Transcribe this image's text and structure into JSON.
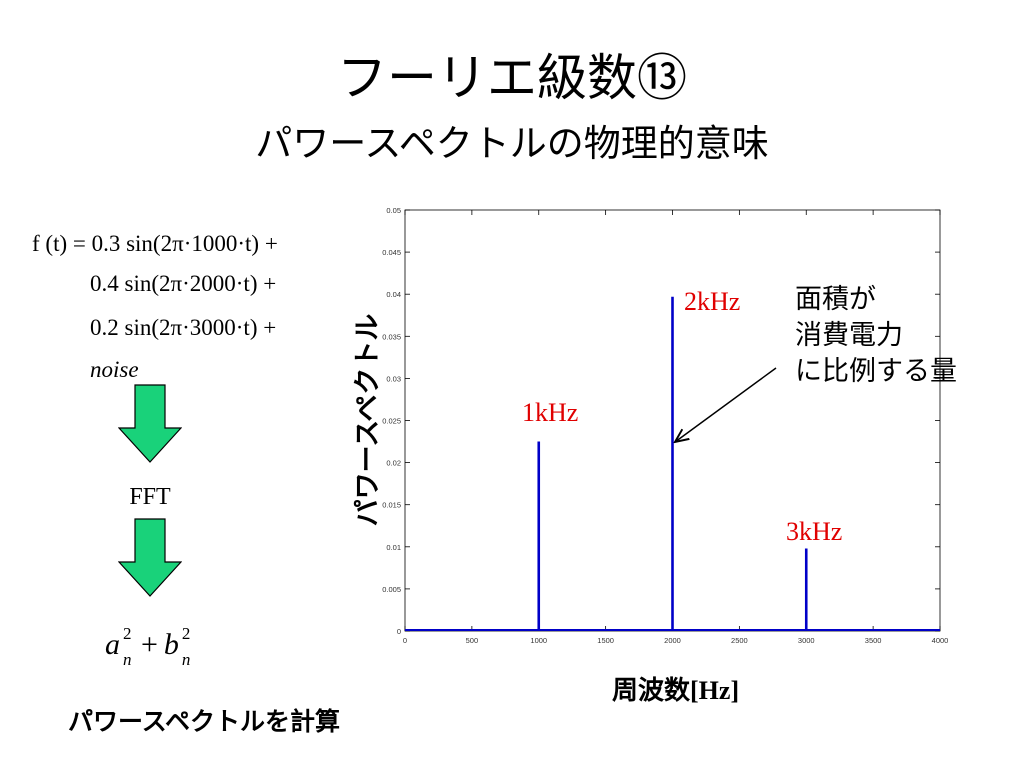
{
  "title": "フーリエ級数⑬",
  "subtitle": "パワースペクトルの物理的意味",
  "equation": {
    "line1": "f (t) = 0.3 sin(2π·1000·t) +",
    "line2": "0.4 sin(2π·2000·t) +",
    "line3": "0.2 sin(2π·3000·t) +",
    "line4": "noise"
  },
  "fft_label": "FFT",
  "formula": {
    "a": "a",
    "b": "b",
    "sup": "2",
    "sub": "n",
    "plus": "+"
  },
  "bottom_label": "パワースペクトルを計算",
  "annotation": {
    "line1": "面積が",
    "line2": "消費電力",
    "line3": "に比例する量"
  },
  "colors": {
    "arrow_fill": "#19d27a",
    "bar": "#0000c8",
    "peak_label": "#e00000"
  },
  "chart_data": {
    "type": "line",
    "xlabel": "周波数",
    "xlabel_unit": "[Hz]",
    "ylabel": "パワースペクトル",
    "xlim": [
      0,
      4000
    ],
    "ylim": [
      0,
      0.05
    ],
    "xticks": [
      0,
      500,
      1000,
      1500,
      2000,
      2500,
      3000,
      3500,
      4000
    ],
    "yticks": [
      0,
      0.005,
      0.01,
      0.015,
      0.02,
      0.025,
      0.03,
      0.035,
      0.04,
      0.045,
      0.05
    ],
    "ytick_labels": [
      "0",
      "0.005",
      "0.01",
      "0.015",
      "0.02",
      "0.025",
      "0.03",
      "0.035",
      "0.04",
      "0.045",
      "0.05"
    ],
    "grid": false,
    "peaks": [
      {
        "x": 1000,
        "y": 0.0225,
        "label": "1kHz"
      },
      {
        "x": 2000,
        "y": 0.0397,
        "label": "2kHz"
      },
      {
        "x": 3000,
        "y": 0.0098,
        "label": "3kHz"
      }
    ]
  }
}
